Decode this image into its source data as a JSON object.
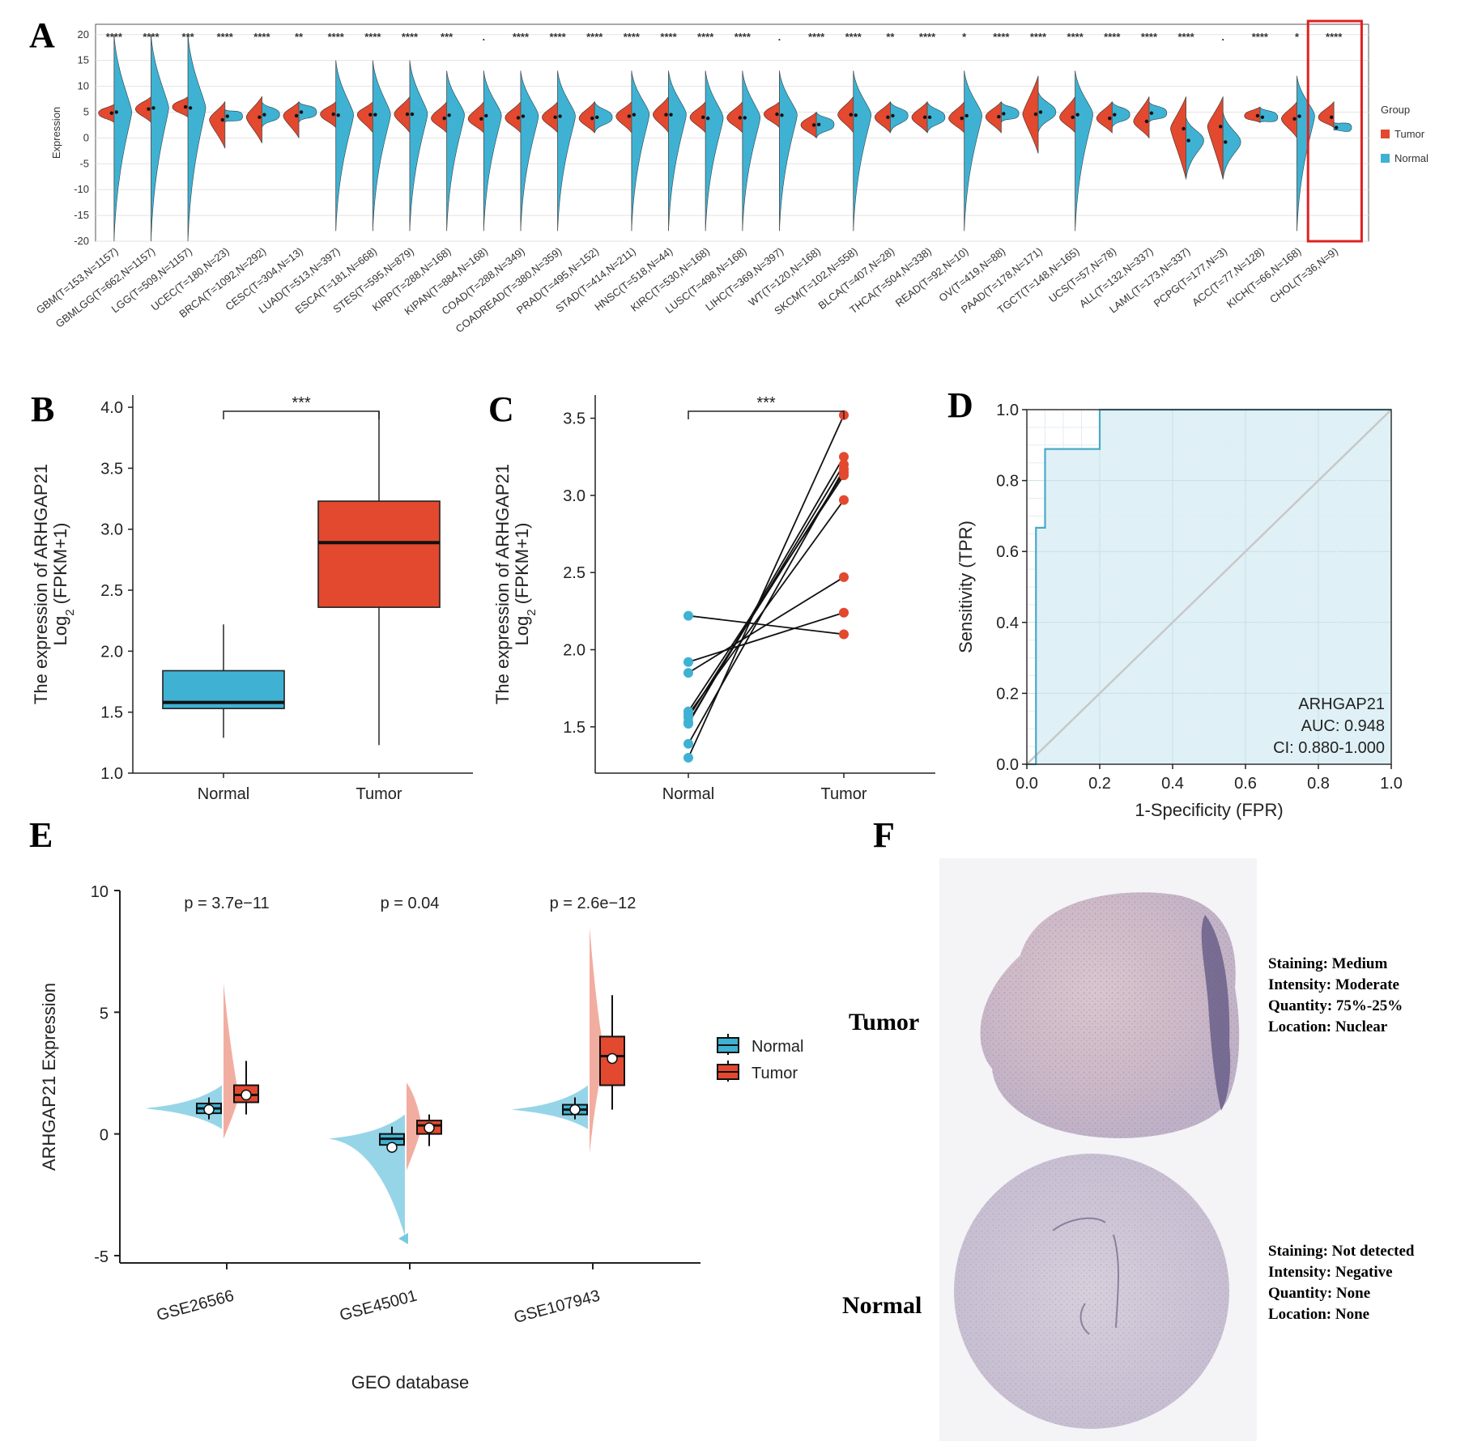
{
  "panels": {
    "A": {
      "letter": "A"
    },
    "B": {
      "letter": "B"
    },
    "C": {
      "letter": "C"
    },
    "D": {
      "letter": "D"
    },
    "E": {
      "letter": "E"
    },
    "F": {
      "letter": "F"
    }
  },
  "colors": {
    "tumor": "#e2492f",
    "normal": "#3fb2d3",
    "highlight": "#e02020",
    "roc_fill": "#dff1f6",
    "roc_line": "#4aa9c6"
  },
  "chart_data": [
    {
      "id": "A",
      "type": "violin",
      "ylabel": "Expression",
      "ylim": [
        -20,
        22
      ],
      "yticks": [
        20,
        15,
        10,
        5,
        0,
        -5,
        -10,
        -15,
        -20
      ],
      "legend": {
        "title": "Group",
        "entries": [
          "Tumor",
          "Normal"
        ],
        "position": "right"
      },
      "highlighted_category": "CHOL(T=36,N=9)",
      "categories": [
        "GBM(T=153,N=1157)",
        "GBMLGG(T=662,N=1157)",
        "LGG(T=509,N=1157)",
        "UCEC(T=180,N=23)",
        "BRCA(T=1092,N=292)",
        "CESC(T=304,N=13)",
        "LUAD(T=513,N=397)",
        "ESCA(T=181,N=668)",
        "STES(T=595,N=879)",
        "KIRP(T=288,N=168)",
        "KIPAN(T=884,N=168)",
        "COAD(T=288,N=349)",
        "COADREAD(T=380,N=359)",
        "PRAD(T=495,N=152)",
        "STAD(T=414,N=211)",
        "HNSC(T=518,N=44)",
        "KIRC(T=530,N=168)",
        "LUSC(T=498,N=168)",
        "LIHC(T=369,N=397)",
        "WT(T=120,N=168)",
        "SKCM(T=102,N=558)",
        "BLCA(T=407,N=28)",
        "THCA(T=504,N=338)",
        "READ(T=92,N=10)",
        "OV(T=419,N=88)",
        "PAAD(T=178,N=171)",
        "TGCT(T=148,N=165)",
        "UCS(T=57,N=78)",
        "ALL(T=132,N=337)",
        "LAML(T=173,N=337)",
        "PCPG(T=177,N=3)",
        "ACC(T=77,N=128)",
        "KICH(T=66,N=168)",
        "CHOL(T=36,N=9)"
      ],
      "significance": [
        "****",
        "****",
        "***",
        "****",
        "****",
        "**",
        "****",
        "****",
        "****",
        "***",
        ".",
        "****",
        "****",
        "****",
        "****",
        "****",
        "****",
        "****",
        ".",
        "****",
        "****",
        "**",
        "****",
        "*",
        "****",
        "****",
        "****",
        "****",
        "****",
        "****",
        ".",
        "****",
        "*",
        "****"
      ],
      "tumor_median": [
        4.8,
        5.6,
        6.0,
        3.5,
        4.0,
        4.3,
        4.6,
        4.5,
        4.6,
        3.8,
        3.7,
        3.9,
        4.0,
        3.8,
        4.2,
        4.5,
        4.0,
        3.9,
        4.6,
        2.5,
        4.5,
        4.0,
        4.0,
        3.8,
        4.1,
        4.6,
        4.0,
        3.8,
        3.2,
        1.8,
        2.2,
        4.3,
        3.7,
        4.0
      ],
      "normal_median": [
        5.0,
        5.8,
        5.8,
        4.2,
        4.5,
        5.0,
        4.4,
        4.5,
        4.6,
        4.4,
        4.3,
        4.2,
        4.2,
        4.0,
        4.5,
        4.5,
        3.8,
        3.9,
        4.4,
        2.6,
        4.4,
        4.3,
        4.0,
        4.3,
        4.7,
        5.0,
        4.5,
        4.5,
        4.8,
        -0.5,
        -0.8,
        4.0,
        4.2,
        2.0
      ],
      "tumor_range": [
        [
          3,
          6.5
        ],
        [
          3,
          8
        ],
        [
          4,
          8
        ],
        [
          -2,
          7
        ],
        [
          -1,
          8
        ],
        [
          0,
          7
        ],
        [
          2,
          7
        ],
        [
          1,
          7
        ],
        [
          1,
          8
        ],
        [
          1,
          7
        ],
        [
          1,
          7
        ],
        [
          1,
          7
        ],
        [
          1,
          7
        ],
        [
          1,
          7
        ],
        [
          1,
          7
        ],
        [
          1,
          8
        ],
        [
          1,
          7
        ],
        [
          1,
          7
        ],
        [
          2,
          7
        ],
        [
          0,
          5
        ],
        [
          1,
          8
        ],
        [
          1,
          7
        ],
        [
          1,
          7
        ],
        [
          1,
          7
        ],
        [
          1,
          7
        ],
        [
          -3,
          12
        ],
        [
          1,
          8
        ],
        [
          1,
          7
        ],
        [
          0,
          8
        ],
        [
          -8,
          8
        ],
        [
          -8,
          8
        ],
        [
          3,
          6
        ],
        [
          0,
          7
        ],
        [
          2,
          7
        ]
      ],
      "normal_range": [
        [
          -20,
          20
        ],
        [
          -20,
          20
        ],
        [
          -20,
          20
        ],
        [
          3,
          5.5
        ],
        [
          2,
          7
        ],
        [
          3,
          7
        ],
        [
          -18,
          15
        ],
        [
          -18,
          15
        ],
        [
          -18,
          15
        ],
        [
          -18,
          13
        ],
        [
          -18,
          13
        ],
        [
          -18,
          13
        ],
        [
          -18,
          13
        ],
        [
          1,
          7
        ],
        [
          -18,
          13
        ],
        [
          -18,
          13
        ],
        [
          -18,
          13
        ],
        [
          -18,
          13
        ],
        [
          -18,
          13
        ],
        [
          0,
          5
        ],
        [
          -18,
          13
        ],
        [
          1,
          7
        ],
        [
          1,
          7
        ],
        [
          -18,
          13
        ],
        [
          3,
          7
        ],
        [
          1,
          9
        ],
        [
          -18,
          13
        ],
        [
          2,
          7
        ],
        [
          3,
          7
        ],
        [
          -8,
          4
        ],
        [
          -8,
          5
        ],
        [
          3,
          6
        ],
        [
          -18,
          12
        ],
        [
          1.5,
          3
        ]
      ]
    },
    {
      "id": "B",
      "type": "box",
      "ylabel_line1": "The expression of ARHGAP21",
      "ylabel_line2": "Log",
      "ylabel_sub": "2",
      "ylabel_rest": " (FPKM+1)",
      "ylim": [
        1.0,
        4.1
      ],
      "yticks": [
        "1.0",
        "1.5",
        "2.0",
        "2.5",
        "3.0",
        "3.5",
        "4.0"
      ],
      "categories": [
        "Normal",
        "Tumor"
      ],
      "significance": "***",
      "boxes": [
        {
          "group": "Normal",
          "min": 1.29,
          "q1": 1.53,
          "median": 1.58,
          "q3": 1.84,
          "max": 2.22
        },
        {
          "group": "Tumor",
          "min": 1.23,
          "q1": 2.36,
          "median": 2.89,
          "q3": 3.23,
          "max": 3.97
        }
      ]
    },
    {
      "id": "C",
      "type": "paired",
      "ylabel_line1": "The expression of ARHGAP21",
      "ylabel_line2": "Log",
      "ylabel_sub": "2",
      "ylabel_rest": " (FPKM+1)",
      "ylim": [
        1.2,
        3.65
      ],
      "yticks": [
        "1.5",
        "2.0",
        "2.5",
        "3.0",
        "3.5"
      ],
      "categories": [
        "Normal",
        "Tumor"
      ],
      "significance": "***",
      "pairs": [
        [
          2.22,
          2.1
        ],
        [
          1.92,
          2.24
        ],
        [
          1.85,
          2.47
        ],
        [
          1.58,
          2.97
        ],
        [
          1.56,
          3.15
        ],
        [
          1.53,
          3.2
        ],
        [
          1.52,
          3.25
        ],
        [
          1.39,
          3.17
        ],
        [
          1.3,
          3.52
        ],
        [
          1.6,
          3.13
        ]
      ]
    },
    {
      "id": "D",
      "type": "roc",
      "xlabel": "1-Specificity (FPR)",
      "ylabel": "Sensitivity (TPR)",
      "xlim": [
        0,
        1
      ],
      "ylim": [
        0,
        1
      ],
      "xticks": [
        "0.0",
        "0.2",
        "0.4",
        "0.6",
        "0.8",
        "1.0"
      ],
      "yticks": [
        "0.0",
        "0.2",
        "0.4",
        "0.6",
        "0.8",
        "1.0"
      ],
      "curve": [
        [
          0,
          0
        ],
        [
          0.025,
          0
        ],
        [
          0.025,
          0.667
        ],
        [
          0.05,
          0.667
        ],
        [
          0.05,
          0.889
        ],
        [
          0.2,
          0.889
        ],
        [
          0.2,
          1.0
        ],
        [
          1.0,
          1.0
        ]
      ],
      "annotation": [
        "ARHGAP21",
        "AUC: 0.948",
        "CI: 0.880-1.000"
      ]
    },
    {
      "id": "E",
      "type": "violin",
      "xlabel": "GEO database",
      "ylabel": "ARHGAP21 Expression",
      "ylim": [
        -5.3,
        10
      ],
      "yticks": [
        "10",
        "5",
        "0",
        "-5"
      ],
      "categories": [
        "GSE26566",
        "GSE45001",
        "GSE107943"
      ],
      "pvalues": [
        "p = 3.7e−11",
        "p = 0.04",
        "p = 2.6e−12"
      ],
      "legend": {
        "entries": [
          "Normal",
          "Tumor"
        ],
        "position": "right"
      },
      "groups": [
        {
          "dataset": "GSE26566",
          "normal": {
            "min": 0.6,
            "q1": 0.85,
            "median": 1.05,
            "q3": 1.25,
            "max": 1.5,
            "mean": 1.0
          },
          "tumor": {
            "min": 0.8,
            "q1": 1.3,
            "median": 1.6,
            "q3": 2.0,
            "max": 3.0,
            "mean": 1.6
          }
        },
        {
          "dataset": "GSE45001",
          "normal": {
            "min": -0.7,
            "q1": -0.45,
            "median": -0.2,
            "q3": 0.0,
            "max": 0.3,
            "mean": -0.55
          },
          "tumor": {
            "min": -0.5,
            "q1": 0.0,
            "median": 0.35,
            "q3": 0.55,
            "max": 0.8,
            "mean": 0.25
          }
        },
        {
          "dataset": "GSE107943",
          "normal": {
            "min": 0.6,
            "q1": 0.8,
            "median": 1.0,
            "q3": 1.2,
            "max": 1.5,
            "mean": 1.0
          },
          "tumor": {
            "min": 1.0,
            "q1": 2.0,
            "median": 3.2,
            "q3": 4.0,
            "max": 5.7,
            "mean": 3.1
          }
        }
      ],
      "outliers": [
        {
          "dataset": "GSE45001",
          "group": "Normal",
          "value": -4.3
        }
      ]
    }
  ],
  "panelF": {
    "tumor_label": "Tumor",
    "normal_label": "Normal",
    "tumor_info": [
      "Staining:  Medium",
      "Intensity:  Moderate",
      "Quantity:  75%-25%",
      "Location:  Nuclear"
    ],
    "normal_info": [
      "Staining:  Not detected",
      "Intensity:  Negative",
      "Quantity:  None",
      "Location:  None"
    ]
  }
}
